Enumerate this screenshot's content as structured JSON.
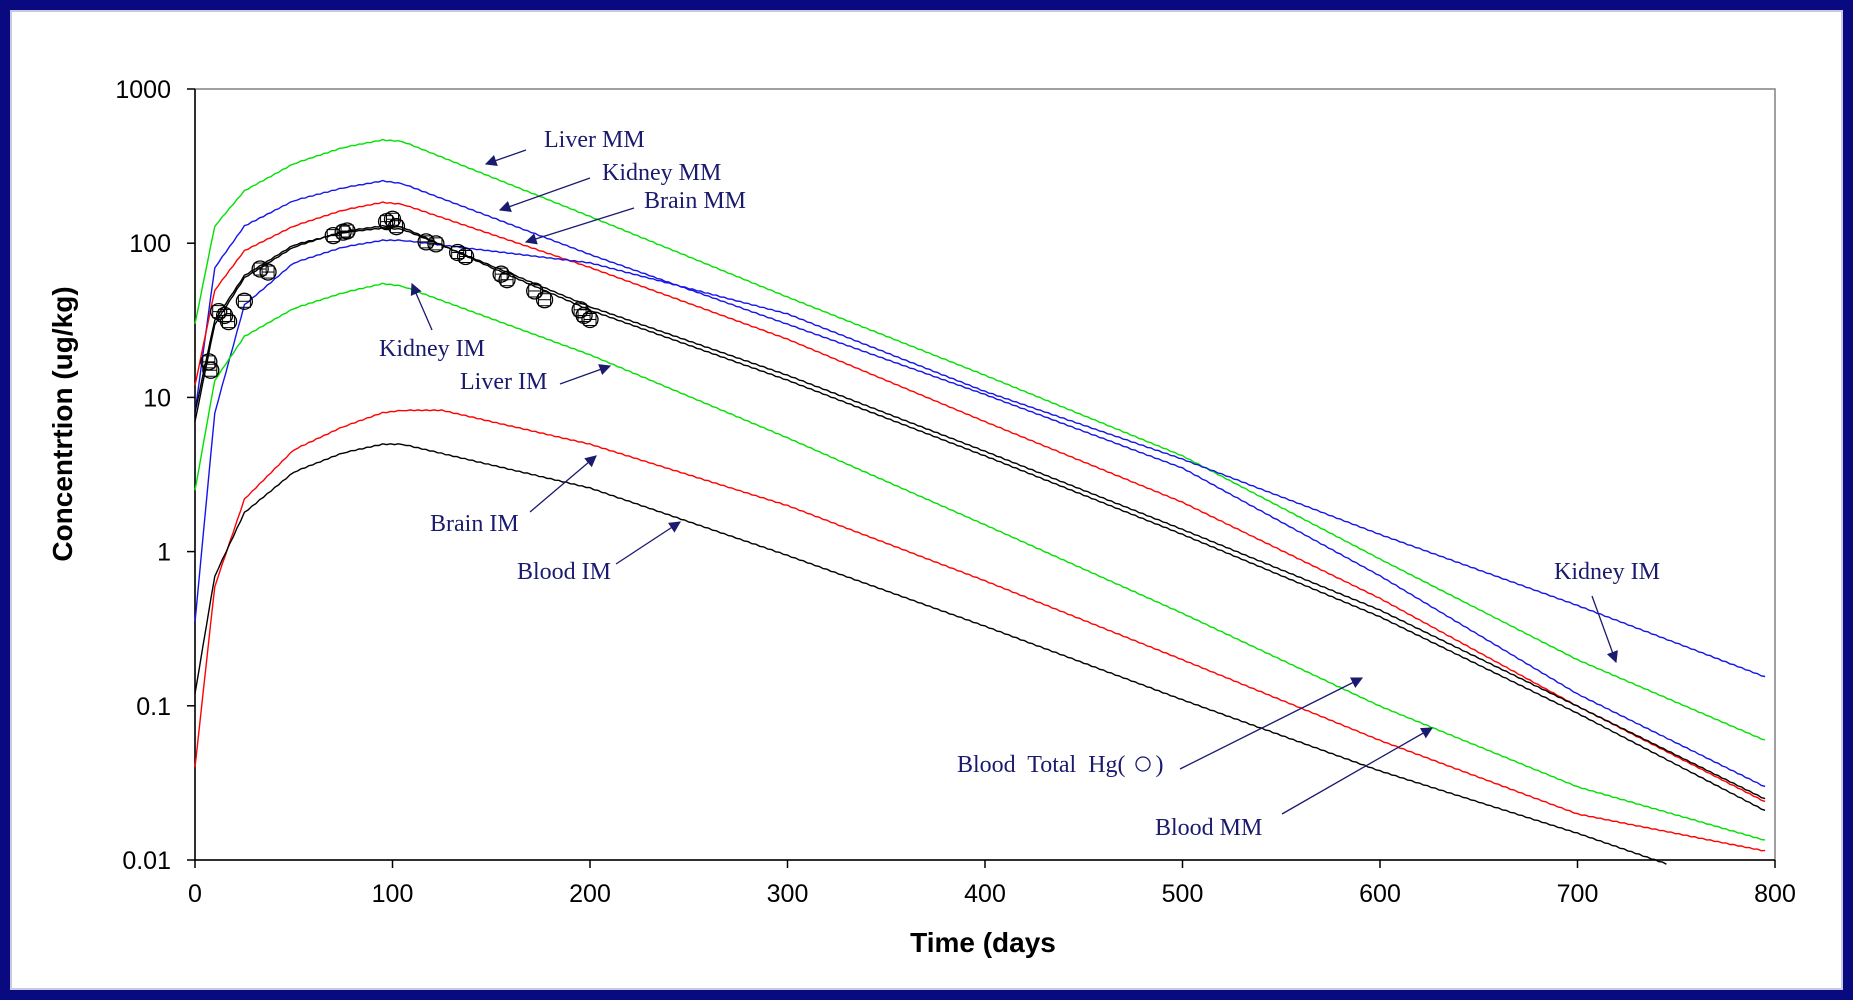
{
  "colors": {
    "frame_background": "#0a0a80",
    "plot_background": "#ffffff",
    "series_green": "#00e000",
    "series_blue": "#1515e8",
    "series_red": "#ff0000",
    "series_black": "#000000",
    "annotation_text": "#1a1a6e"
  },
  "chart_data": {
    "type": "line",
    "title": "",
    "xlabel": "Time (days",
    "ylabel": "Concentrtion (ug/kg)",
    "xlim": [
      0,
      800
    ],
    "ylim": [
      0.01,
      1000
    ],
    "yscale": "log",
    "grid": false,
    "legend": "none",
    "x_ticks": [
      "0",
      "100",
      "200",
      "300",
      "400",
      "500",
      "600",
      "700",
      "800"
    ],
    "x_tick_values": [
      0,
      100,
      200,
      300,
      400,
      500,
      600,
      700,
      800
    ],
    "y_ticks": [
      "0.01",
      "0.1",
      "1",
      "10",
      "100",
      "1000"
    ],
    "y_tick_values": [
      0.01,
      0.1,
      1,
      10,
      100,
      1000
    ],
    "series": [
      {
        "name": "Liver MM",
        "color": "#00e000",
        "x": [
          0,
          10,
          25,
          50,
          75,
          95,
          105,
          200,
          300,
          400,
          500,
          600,
          700,
          795
        ],
        "y": [
          30,
          130,
          220,
          330,
          420,
          470,
          460,
          150,
          45,
          14,
          4.2,
          0.9,
          0.2,
          0.06
        ]
      },
      {
        "name": "Kidney MM",
        "color": "#1515e8",
        "x": [
          0,
          10,
          25,
          50,
          75,
          95,
          105,
          200,
          300,
          400,
          500,
          600,
          700,
          795
        ],
        "y": [
          8,
          70,
          130,
          190,
          230,
          255,
          245,
          85,
          30,
          10.5,
          3.5,
          0.7,
          0.12,
          0.03
        ]
      },
      {
        "name": "Brain MM",
        "color": "#ff0000",
        "x": [
          0,
          10,
          25,
          50,
          75,
          95,
          105,
          200,
          300,
          400,
          500,
          600,
          700,
          795
        ],
        "y": [
          12,
          50,
          90,
          130,
          165,
          185,
          180,
          70,
          24,
          7,
          2.1,
          0.5,
          0.1,
          0.024
        ]
      },
      {
        "name": "Kidney IM",
        "color": "#1515e8",
        "x": [
          0,
          10,
          25,
          50,
          75,
          95,
          105,
          200,
          300,
          400,
          500,
          600,
          700,
          795
        ],
        "y": [
          0.35,
          8,
          40,
          75,
          95,
          105,
          105,
          75,
          35,
          11,
          4,
          1.3,
          0.45,
          0.155
        ]
      },
      {
        "name": "Liver IM",
        "color": "#00e000",
        "x": [
          0,
          10,
          25,
          50,
          75,
          95,
          105,
          200,
          300,
          400,
          500,
          600,
          700,
          795
        ],
        "y": [
          2.5,
          13,
          25,
          38,
          48,
          55,
          53,
          19,
          5.5,
          1.5,
          0.4,
          0.1,
          0.03,
          0.0135
        ]
      },
      {
        "name": "Brain IM",
        "color": "#ff0000",
        "x": [
          0,
          10,
          25,
          50,
          75,
          95,
          105,
          125,
          200,
          300,
          400,
          500,
          600,
          700,
          795
        ],
        "y": [
          0.04,
          0.6,
          2.2,
          4.6,
          6.5,
          8,
          8.3,
          8.3,
          5,
          2,
          0.65,
          0.2,
          0.06,
          0.02,
          0.0115
        ]
      },
      {
        "name": "Blood IM",
        "color": "#000000",
        "x": [
          0,
          10,
          25,
          50,
          75,
          95,
          105,
          200,
          300,
          400,
          500,
          600,
          700,
          745
        ],
        "y": [
          0.12,
          0.7,
          1.8,
          3.3,
          4.4,
          5,
          5,
          2.6,
          0.95,
          0.33,
          0.11,
          0.038,
          0.015,
          0.0095
        ]
      },
      {
        "name": "Blood Total Hg",
        "color": "#000000",
        "x": [
          0,
          10,
          25,
          50,
          75,
          95,
          105,
          150,
          200,
          300,
          400,
          500,
          600,
          700,
          795
        ],
        "y": [
          7,
          30,
          60,
          95,
          120,
          130,
          128,
          70,
          37,
          13,
          4.2,
          1.3,
          0.38,
          0.09,
          0.021
        ]
      },
      {
        "name": "Blood MM",
        "color": "#000000",
        "x": [
          0,
          10,
          25,
          50,
          75,
          95,
          105,
          150,
          200,
          300,
          400,
          500,
          600,
          700,
          795
        ],
        "y": [
          8,
          32,
          62,
          98,
          118,
          126,
          124,
          72,
          39,
          14,
          4.5,
          1.4,
          0.42,
          0.1,
          0.025
        ]
      },
      {
        "name": "Observed",
        "color": "#000000",
        "marker": "open-circle-square",
        "x": [
          7,
          8,
          12,
          15,
          17,
          25,
          33,
          37,
          70,
          75,
          77,
          97,
          100,
          102,
          117,
          122,
          133,
          137,
          155,
          158,
          172,
          177,
          195,
          197,
          200
        ],
        "y": [
          17,
          15,
          36,
          34,
          31,
          42,
          68,
          65,
          112,
          118,
          120,
          138,
          143,
          128,
          102,
          99,
          87,
          82,
          63,
          58,
          49,
          43,
          37,
          34,
          32
        ]
      }
    ],
    "annotations": [
      {
        "text": "Liver MM"
      },
      {
        "text": "Kidney MM"
      },
      {
        "text": "Brain MM"
      },
      {
        "text": "Kidney IM"
      },
      {
        "text": "Liver IM"
      },
      {
        "text": "Brain IM"
      },
      {
        "text": "Blood IM"
      },
      {
        "text": "Kidney IM"
      },
      {
        "text": "Blood  Total  Hg(     )"
      },
      {
        "text": "Blood MM"
      }
    ]
  }
}
